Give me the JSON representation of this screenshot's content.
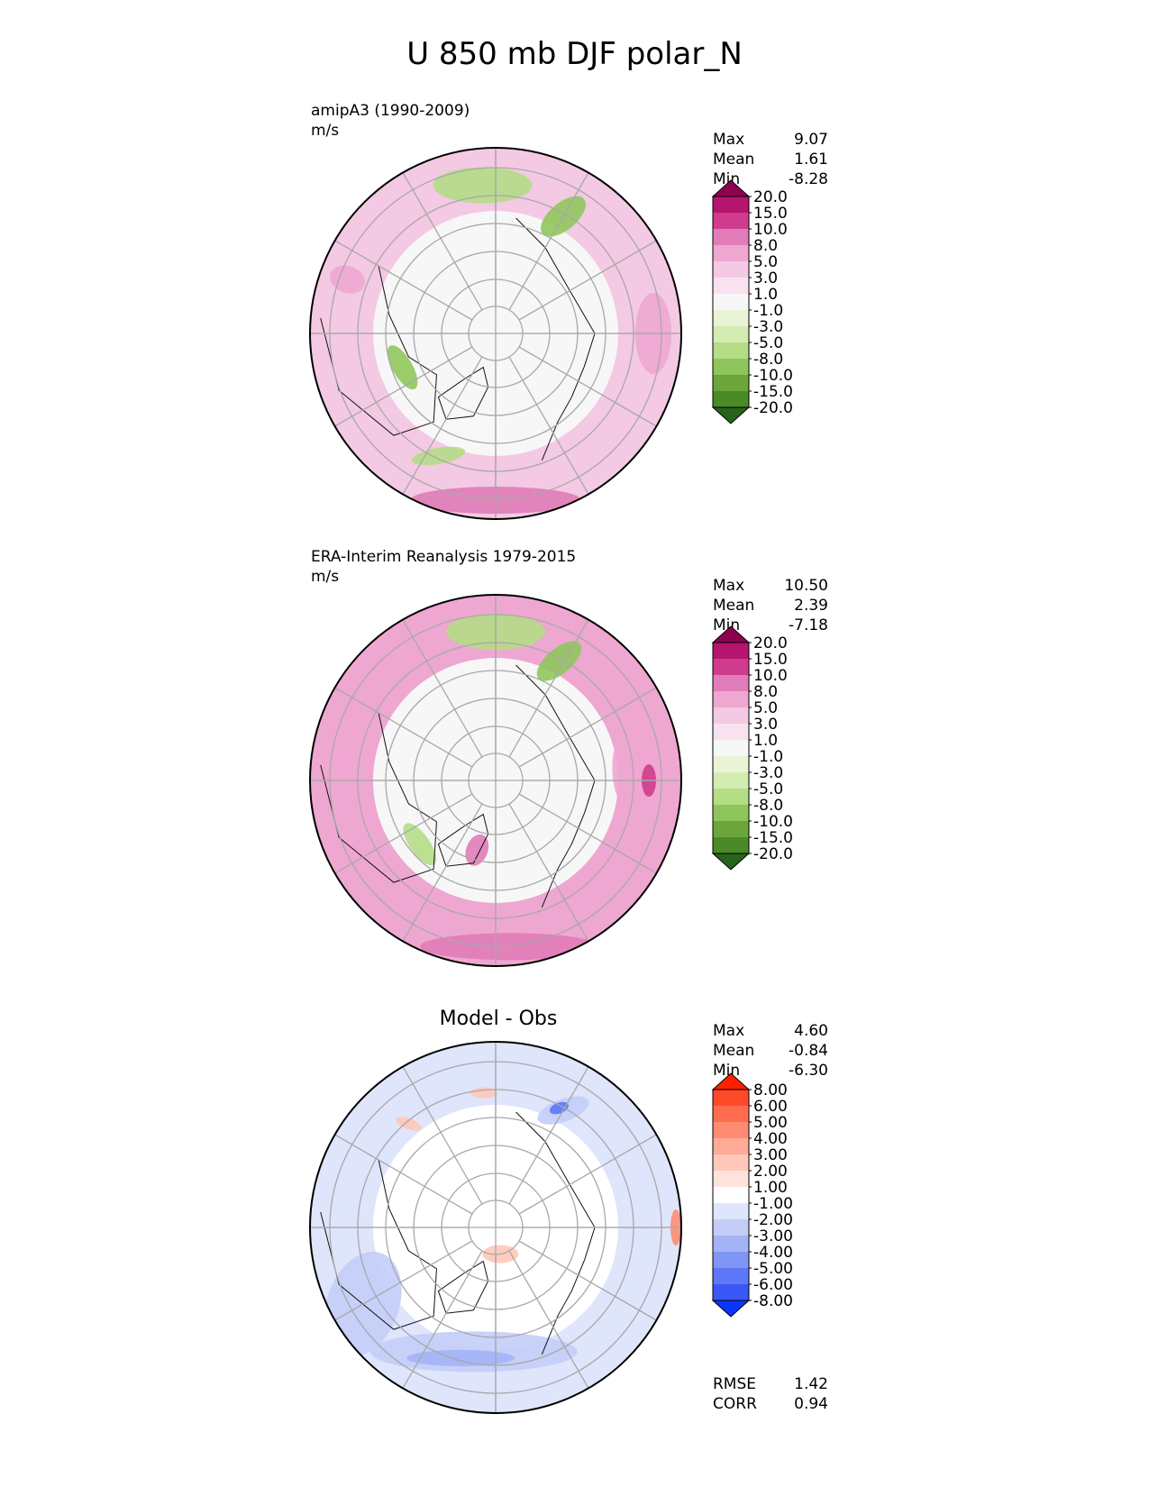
{
  "title": "U 850 mb DJF polar_N",
  "panels": [
    {
      "title": "amipA3 (1990-2009)",
      "units": "m/s",
      "stats": [
        {
          "label": "Max",
          "value": "9.07"
        },
        {
          "label": "Mean",
          "value": "1.61"
        },
        {
          "label": "Min",
          "value": "-8.28"
        }
      ]
    },
    {
      "title": "ERA-Interim Reanalysis 1979-2015",
      "units": "m/s",
      "stats": [
        {
          "label": "Max",
          "value": "10.50"
        },
        {
          "label": "Mean",
          "value": "2.39"
        },
        {
          "label": "Min",
          "value": "-7.18"
        }
      ]
    },
    {
      "title": "Model - Obs",
      "stats": [
        {
          "label": "Max",
          "value": "4.60"
        },
        {
          "label": "Mean",
          "value": "-0.84"
        },
        {
          "label": "Min",
          "value": "-6.30"
        }
      ],
      "metrics": [
        {
          "label": "RMSE",
          "value": "1.42"
        },
        {
          "label": "CORR",
          "value": "0.94"
        }
      ]
    }
  ],
  "chart_data": [
    {
      "type": "heatmap",
      "projection": "north polar stereographic",
      "title": "amipA3 (1990-2009)",
      "units": "m/s",
      "max": 9.07,
      "mean": 1.61,
      "min": -8.28,
      "colorbar_levels": [
        "20.0",
        "15.0",
        "10.0",
        "8.0",
        "5.0",
        "3.0",
        "1.0",
        "-1.0",
        "-3.0",
        "-5.0",
        "-8.0",
        "-10.0",
        "-15.0",
        "-20.0"
      ],
      "colorbar_colors": [
        "#8e0152",
        "#b5146f",
        "#cf3c8d",
        "#e07cb7",
        "#eea7d0",
        "#f4c9e3",
        "#f9e2ef",
        "#f7f7f7",
        "#e9f4d6",
        "#d3ecb2",
        "#b4dd85",
        "#8fc65b",
        "#6aa63a",
        "#4a8a27",
        "#276419"
      ]
    },
    {
      "type": "heatmap",
      "projection": "north polar stereographic",
      "title": "ERA-Interim Reanalysis 1979-2015",
      "units": "m/s",
      "max": 10.5,
      "mean": 2.39,
      "min": -7.18,
      "colorbar_levels": [
        "20.0",
        "15.0",
        "10.0",
        "8.0",
        "5.0",
        "3.0",
        "1.0",
        "-1.0",
        "-3.0",
        "-5.0",
        "-8.0",
        "-10.0",
        "-15.0",
        "-20.0"
      ],
      "colorbar_colors": [
        "#8e0152",
        "#b5146f",
        "#cf3c8d",
        "#e07cb7",
        "#eea7d0",
        "#f4c9e3",
        "#f9e2ef",
        "#f7f7f7",
        "#e9f4d6",
        "#d3ecb2",
        "#b4dd85",
        "#8fc65b",
        "#6aa63a",
        "#4a8a27",
        "#276419"
      ]
    },
    {
      "type": "heatmap",
      "projection": "north polar stereographic",
      "title": "Model - Obs",
      "max": 4.6,
      "mean": -0.84,
      "min": -6.3,
      "rmse": 1.42,
      "corr": 0.94,
      "colorbar_levels": [
        "8.00",
        "6.00",
        "5.00",
        "4.00",
        "3.00",
        "2.00",
        "1.00",
        "-1.00",
        "-2.00",
        "-3.00",
        "-4.00",
        "-5.00",
        "-6.00",
        "-8.00"
      ],
      "colorbar_colors": [
        "#ff2000",
        "#ff4a2a",
        "#ff6d4e",
        "#ff8c72",
        "#ffab96",
        "#ffc8b8",
        "#ffe3da",
        "#ffffff",
        "#dfe5fb",
        "#c3cdf8",
        "#a3b3f6",
        "#8096f5",
        "#5d77f6",
        "#3a58f7",
        "#0b34ff"
      ]
    }
  ]
}
